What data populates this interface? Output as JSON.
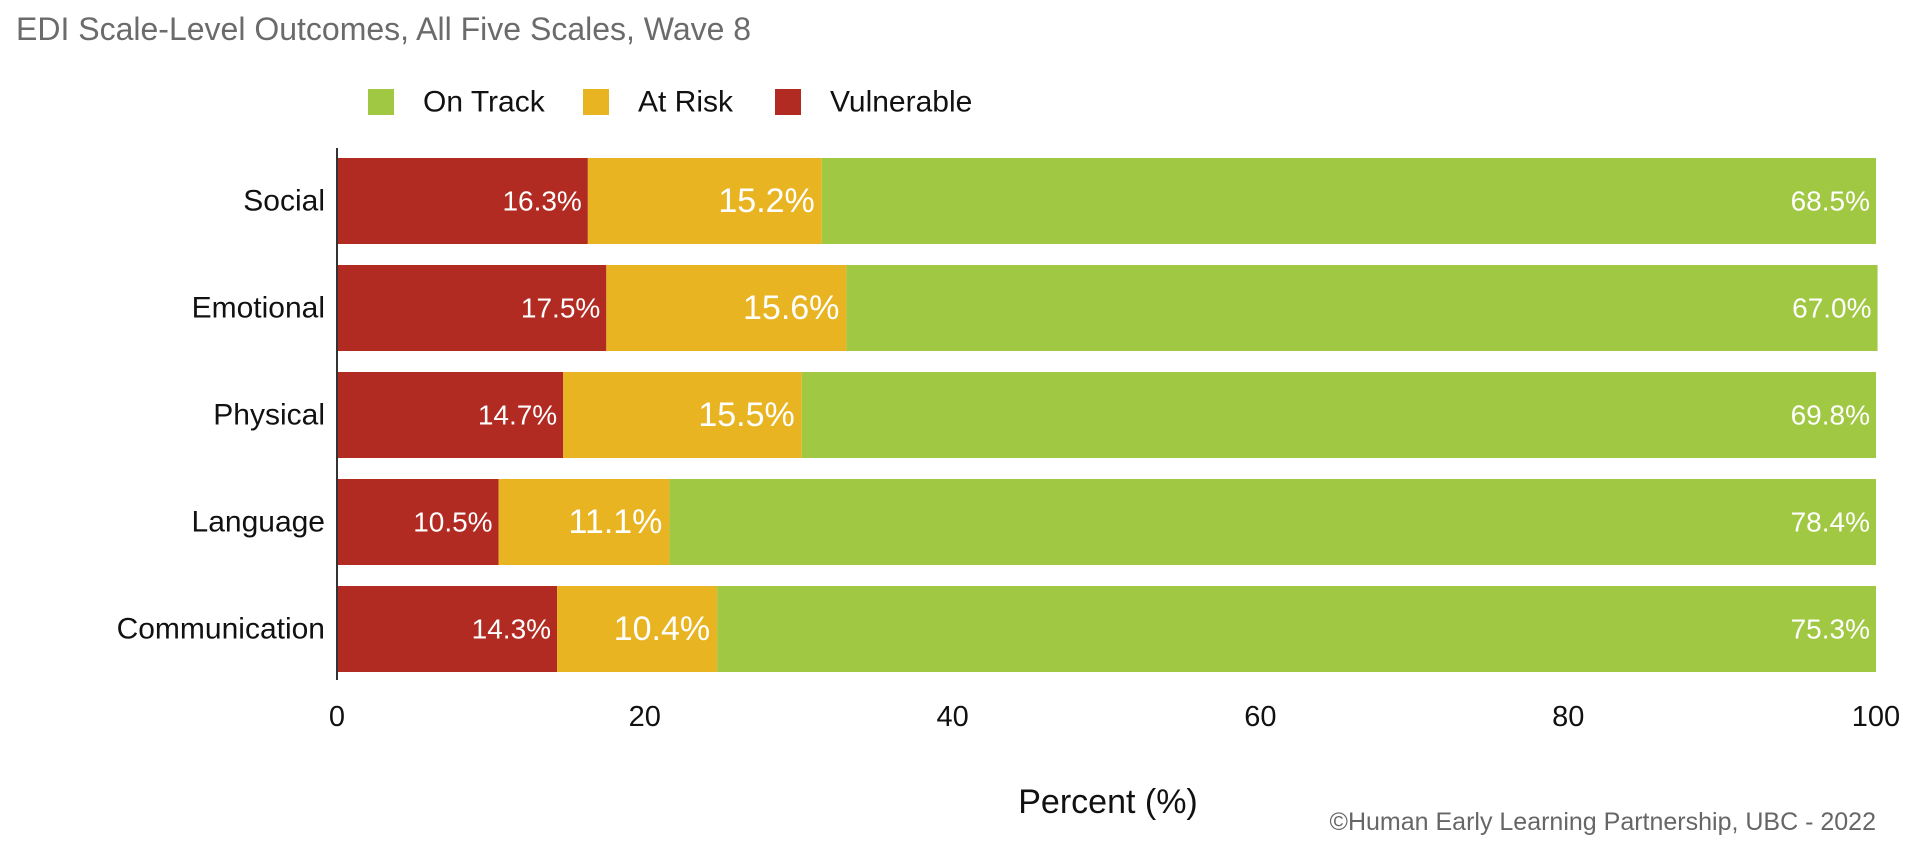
{
  "chart_data": {
    "type": "bar",
    "orientation": "horizontal",
    "stacked": true,
    "title": "EDI Scale-Level Outcomes, All Five Scales, Wave 8",
    "xlabel": "Percent (%)",
    "ylabel": "",
    "xlim": [
      0,
      100
    ],
    "xticks": [
      0,
      20,
      40,
      60,
      80,
      100
    ],
    "grid": false,
    "legend_position": "top-left",
    "categories": [
      "Social",
      "Emotional",
      "Physical",
      "Language",
      "Communication"
    ],
    "series": [
      {
        "name": "Vulnerable",
        "color": "#b22b22",
        "values": [
          16.3,
          17.5,
          14.7,
          10.5,
          14.3
        ],
        "labels": [
          "16.3%",
          "17.5%",
          "14.7%",
          "10.5%",
          "14.3%"
        ]
      },
      {
        "name": "At Risk",
        "color": "#e8b421",
        "values": [
          15.2,
          15.6,
          15.5,
          11.1,
          10.4
        ],
        "labels": [
          "15.2%",
          "15.6%",
          "15.5%",
          "11.1%",
          "10.4%"
        ]
      },
      {
        "name": "On Track",
        "color": "#a0c843",
        "values": [
          68.5,
          67.0,
          69.8,
          78.4,
          75.3
        ],
        "labels": [
          "68.5%",
          "67.0%",
          "69.8%",
          "78.4%",
          "75.3%"
        ]
      }
    ],
    "legend_order": [
      "On Track",
      "At Risk",
      "Vulnerable"
    ],
    "credit": "©Human Early Learning Partnership, UBC - 2022"
  },
  "colors": {
    "title": "#6b6b6b",
    "axis": "#333333",
    "text": "#111111",
    "credit": "#666666",
    "bar_label": "#ffffff"
  }
}
